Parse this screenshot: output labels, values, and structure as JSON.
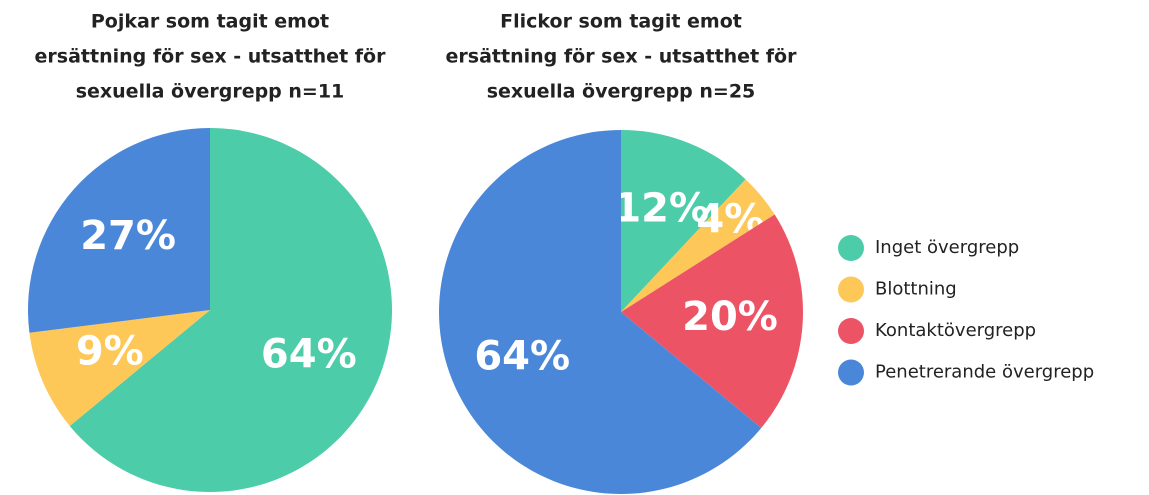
{
  "chart_data": [
    {
      "type": "pie",
      "title": [
        "Pojkar som tagit emot",
        "ersättning för sex - utsatthet för",
        "sexuella övergrepp n=11"
      ],
      "values": [
        64,
        9,
        27
      ],
      "value_labels": [
        "64%",
        "9%",
        "27%"
      ],
      "colors": [
        "#4ccca8",
        "#fdc858",
        "#4b87d9"
      ]
    },
    {
      "type": "pie",
      "title": [
        "Flickor som tagit emot",
        "ersättning för sex - utsatthet för",
        "sexuella övergrepp n=25"
      ],
      "categories": [
        "Inget övergrepp",
        "Blottning",
        "Kontaktövergrepp",
        "Penetrerande övergrepp"
      ],
      "values": [
        12,
        4,
        20,
        64
      ],
      "value_labels": [
        "12%",
        "4%",
        "20%",
        "64%"
      ],
      "colors": [
        "#4ccca8",
        "#fdc858",
        "#ec5466",
        "#4b87d9"
      ]
    }
  ]
}
